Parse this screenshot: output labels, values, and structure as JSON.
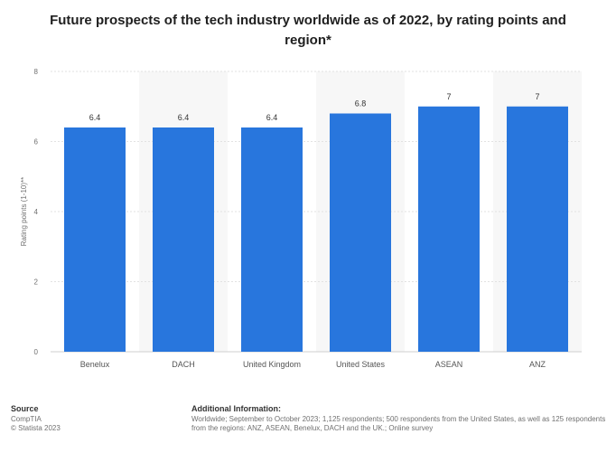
{
  "chart_data": {
    "type": "bar",
    "title": "Future prospects of the tech industry worldwide as of 2022, by rating points and region*",
    "ylabel": "Rating points (1-10)**",
    "xlabel": "",
    "categories": [
      "Benelux",
      "DACH",
      "United Kingdom",
      "United States",
      "ASEAN",
      "ANZ"
    ],
    "values": [
      6.4,
      6.4,
      6.4,
      6.8,
      7,
      7
    ],
    "value_labels": [
      "6.4",
      "6.4",
      "6.4",
      "6.8",
      "7",
      "7"
    ],
    "ylim": [
      0,
      8
    ],
    "yticks": [
      0,
      2,
      4,
      6,
      8
    ],
    "grid": true,
    "bar_color": "#2876dd"
  },
  "footer": {
    "source_heading": "Source",
    "source_name": "CompTIA",
    "copyright": "© Statista 2023",
    "additional_heading": "Additional Information:",
    "additional_text": "Worldwide; September to October 2023; 1,125 respondents; 500 respondents from the United States, as well as 125 respondents from the regions: ANZ, ASEAN, Benelux, DACH and the UK.; Online survey"
  }
}
